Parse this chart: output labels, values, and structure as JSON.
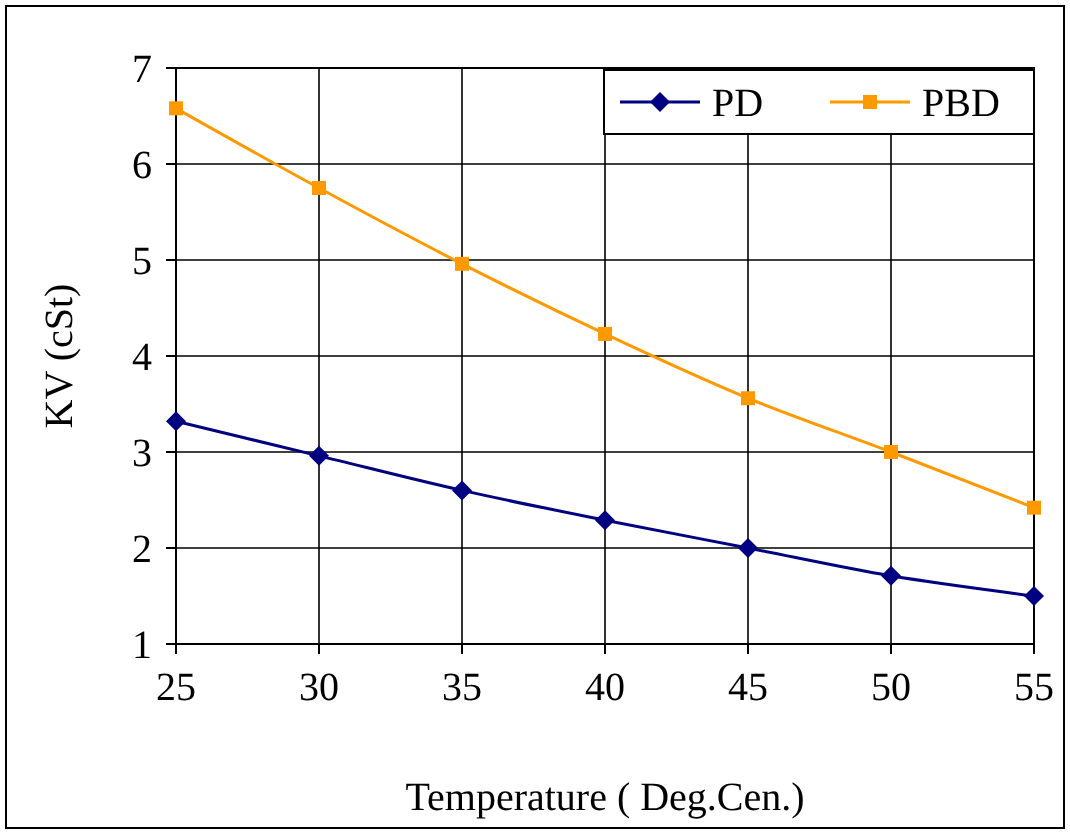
{
  "chart_data": {
    "type": "line",
    "xlabel": "Temperature ( Deg.Cen.)",
    "ylabel": "KV (cSt)",
    "x": [
      25,
      30,
      35,
      40,
      45,
      50,
      55
    ],
    "series": [
      {
        "name": "PD",
        "color": "#000080",
        "marker": "diamond",
        "values": [
          3.32,
          2.96,
          2.6,
          2.29,
          2.0,
          1.71,
          1.5
        ]
      },
      {
        "name": "PBD",
        "color": "#ff9900",
        "marker": "square",
        "values": [
          6.58,
          5.75,
          4.96,
          4.23,
          3.56,
          3.0,
          2.42
        ]
      }
    ],
    "xlim": [
      25,
      55
    ],
    "xticks": [
      25,
      30,
      35,
      40,
      45,
      50,
      55
    ],
    "ylim": [
      1,
      7
    ],
    "yticks": [
      1,
      2,
      3,
      4,
      5,
      6,
      7
    ],
    "grid": true,
    "legend": "top right",
    "line_style": "solid"
  }
}
